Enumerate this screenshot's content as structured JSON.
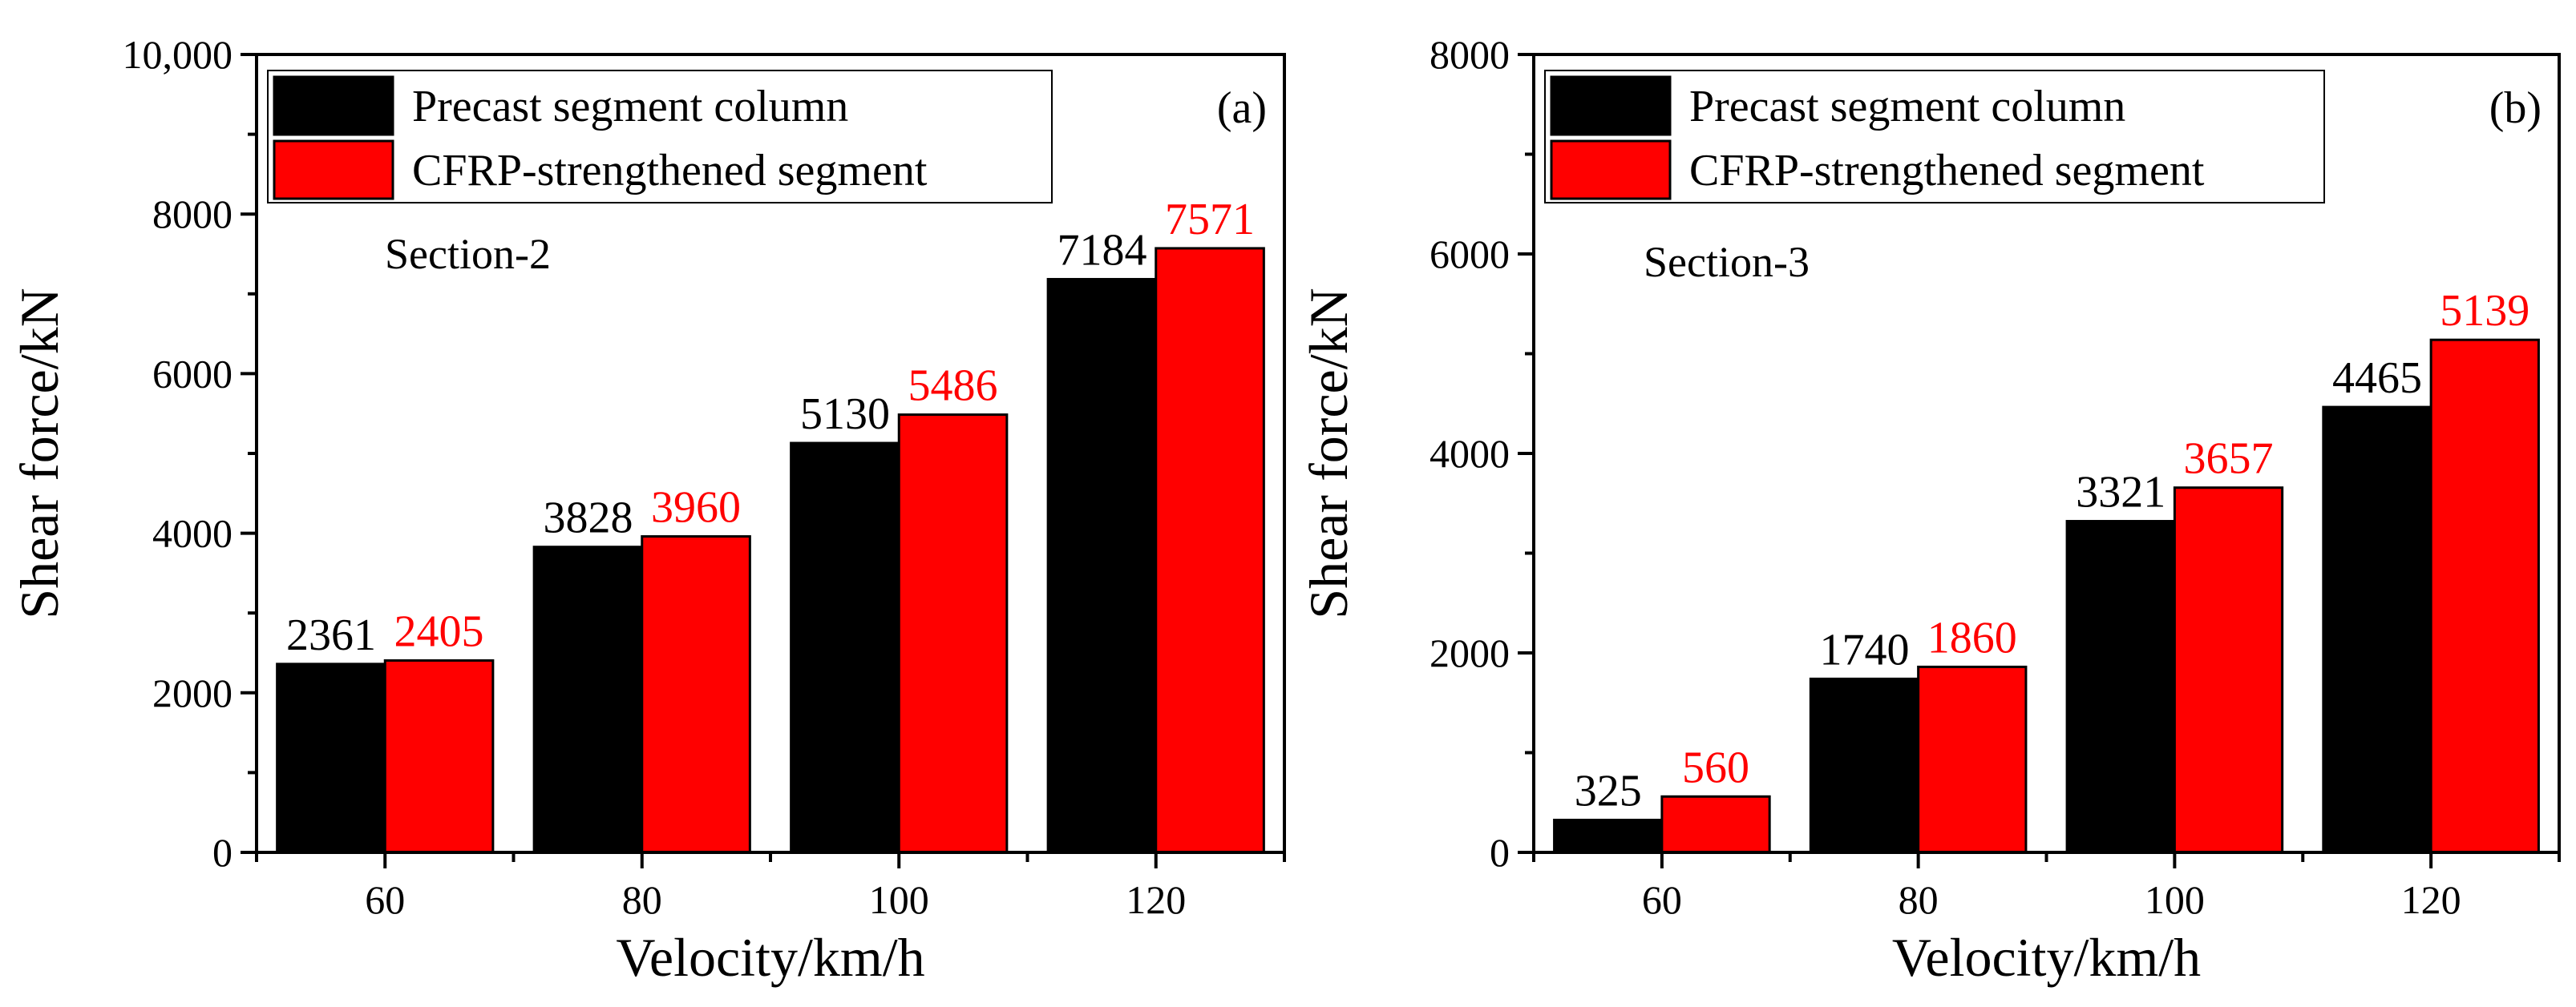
{
  "colors": {
    "series_1": "#000000",
    "series_2": "#ff0000",
    "label_1": "#000000",
    "label_2": "#ff0000",
    "axis": "#000000"
  },
  "chart_data": [
    {
      "type": "bar",
      "panel_tag": "(a)",
      "section_label": "Section-2",
      "xlabel": "Velocity/km/h",
      "ylabel": "Shear force/kN",
      "categories": [
        "60",
        "80",
        "100",
        "120"
      ],
      "ylim": [
        0,
        10000
      ],
      "yticks": [
        0,
        2000,
        4000,
        6000,
        8000,
        10000
      ],
      "ytick_labels": [
        "0",
        "2000",
        "4000",
        "6000",
        "8000",
        "10,000"
      ],
      "legend_position": "top-left",
      "series": [
        {
          "name": "Precast segment column",
          "values": [
            2361,
            3828,
            5130,
            7184
          ],
          "labels": [
            "2361",
            "3828",
            "5130",
            "7184"
          ]
        },
        {
          "name": "CFRP-strengthened segment",
          "values": [
            2405,
            3960,
            5486,
            7571
          ],
          "labels": [
            "2405",
            "3960",
            "5486",
            "7571"
          ]
        }
      ]
    },
    {
      "type": "bar",
      "panel_tag": "(b)",
      "section_label": "Section-3",
      "xlabel": "Velocity/km/h",
      "ylabel": "Shear force/kN",
      "categories": [
        "60",
        "80",
        "100",
        "120"
      ],
      "ylim": [
        0,
        8000
      ],
      "yticks": [
        0,
        2000,
        4000,
        6000,
        8000
      ],
      "ytick_labels": [
        "0",
        "2000",
        "4000",
        "6000",
        "8000"
      ],
      "legend_position": "top-left",
      "series": [
        {
          "name": "Precast segment column",
          "values": [
            325,
            1740,
            3321,
            4465
          ],
          "labels": [
            "325",
            "1740",
            "3321",
            "4465"
          ]
        },
        {
          "name": "CFRP-strengthened segment",
          "values": [
            560,
            1860,
            3657,
            5139
          ],
          "labels": [
            "560",
            "1860",
            "3657",
            "5139"
          ]
        }
      ]
    }
  ]
}
